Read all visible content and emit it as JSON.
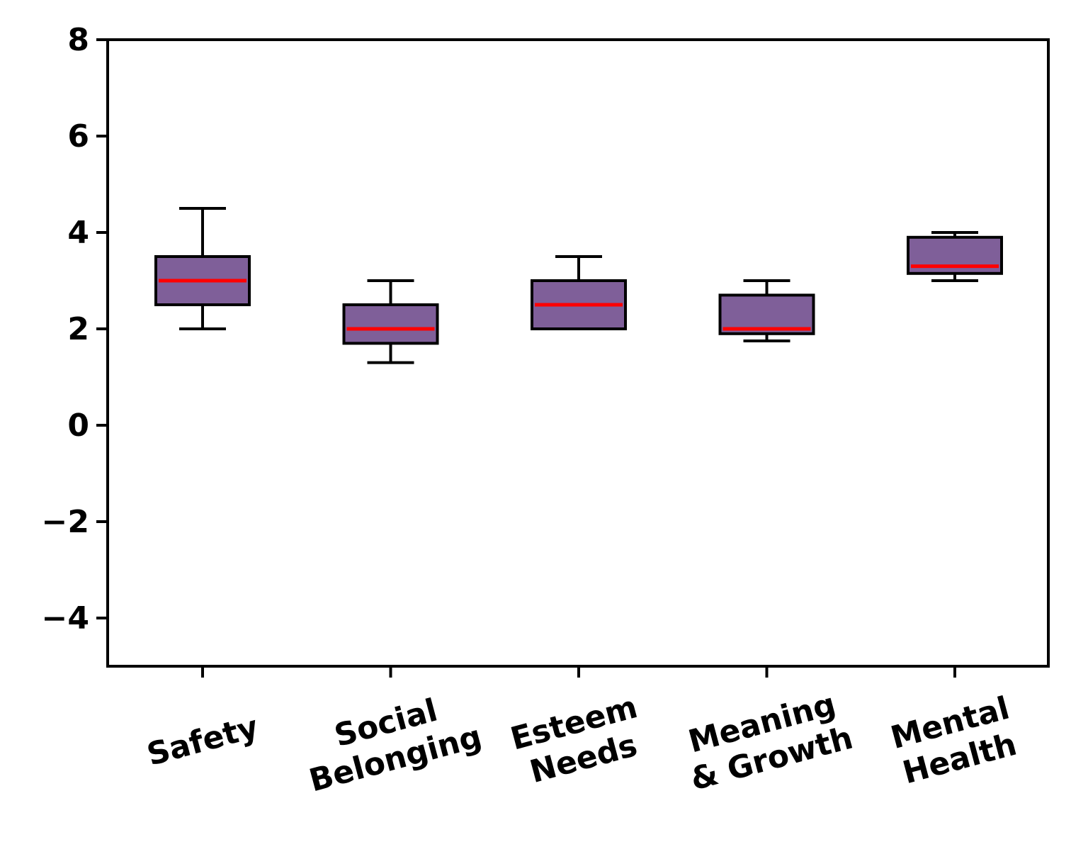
{
  "chart_data": {
    "type": "box",
    "title": "",
    "xlabel": "",
    "ylabel": "",
    "ylim": [
      -5,
      8
    ],
    "yticks": [
      -4,
      -2,
      0,
      2,
      4,
      6,
      8
    ],
    "ytick_labels": [
      "−4",
      "−2",
      "0",
      "2",
      "4",
      "6",
      "8"
    ],
    "grid": false,
    "categories": [
      [
        "Safety"
      ],
      [
        "Social",
        "Belonging"
      ],
      [
        "Esteem",
        "Needs"
      ],
      [
        "Meaning",
        "& Growth"
      ],
      [
        "Mental",
        "Health"
      ]
    ],
    "boxes": [
      {
        "whisker_low": 2.0,
        "q1": 2.5,
        "median": 3.0,
        "q3": 3.5,
        "whisker_high": 4.5
      },
      {
        "whisker_low": 1.3,
        "q1": 1.7,
        "median": 2.0,
        "q3": 2.5,
        "whisker_high": 3.0
      },
      {
        "whisker_low": 2.0,
        "q1": 2.0,
        "median": 2.5,
        "q3": 3.0,
        "whisker_high": 3.5
      },
      {
        "whisker_low": 1.75,
        "q1": 1.9,
        "median": 2.0,
        "q3": 2.7,
        "whisker_high": 3.0
      },
      {
        "whisker_low": 3.0,
        "q1": 3.15,
        "median": 3.3,
        "q3": 3.9,
        "whisker_high": 4.0
      }
    ],
    "colors": {
      "box_fill": "#7f5f99",
      "median": "#ff0000",
      "edge": "#000000"
    }
  }
}
